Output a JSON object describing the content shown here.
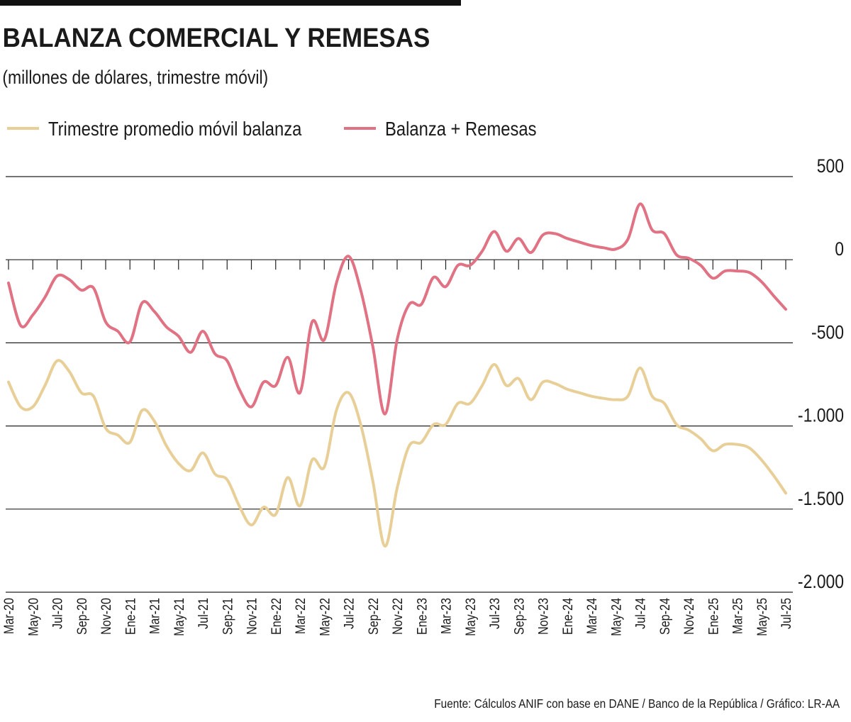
{
  "chart_data": {
    "type": "line",
    "title": "BALANZA COMERCIAL Y REMESAS",
    "subtitle": "(millones de dólares, trimestre móvil)",
    "source": "Fuente: Cálculos ANIF con base en DANE / Banco de la República / Gráfico: LR-AA",
    "categories": [
      "Mar-20",
      null,
      "May-20",
      null,
      "Jul-20",
      null,
      "Sep-20",
      null,
      "Nov-20",
      null,
      "Ene-21",
      null,
      "Mar-21",
      null,
      "May-21",
      null,
      "Jul-21",
      null,
      "Sep-21",
      null,
      "Nov-21",
      null,
      "Ene-22",
      null,
      "Mar-22",
      null,
      "May-22",
      null,
      "Jul-22",
      null,
      "Sep-22",
      null,
      "Nov-22",
      null,
      "Ene-23",
      null,
      "Mar-23",
      null,
      "May-23",
      null,
      "Jul-23",
      null,
      "Sep-23",
      null,
      "Nov-23",
      null,
      "Ene-24",
      null,
      "Mar-24",
      null,
      "May-24",
      null,
      "Jul-24",
      null,
      "Sep-24",
      null,
      "Nov-24",
      null,
      "Ene-25",
      null,
      "Mar-25",
      null,
      "May-25",
      null,
      "Jul-25"
    ],
    "series": [
      {
        "name": "Trimestre promedio móvil balanza",
        "color": "#e8cf98",
        "values": [
          -736,
          -885,
          -885,
          -757,
          -608,
          -672,
          -800,
          -821,
          -1013,
          -1055,
          -1098,
          -906,
          -970,
          -1119,
          -1225,
          -1268,
          -1162,
          -1289,
          -1323,
          -1481,
          -1596,
          -1489,
          -1532,
          -1310,
          -1481,
          -1204,
          -1247,
          -906,
          -800,
          -991,
          -1332,
          -1723,
          -1374,
          -1119,
          -1098,
          -991,
          -991,
          -864,
          -864,
          -757,
          -630,
          -757,
          -715,
          -842,
          -736,
          -745,
          -779,
          -800,
          -821,
          -834,
          -842,
          -821,
          -651,
          -821,
          -864,
          -991,
          -1025,
          -1077,
          -1149,
          -1111,
          -1111,
          -1132,
          -1204,
          -1298,
          -1404
        ]
      },
      {
        "name": "Balanza + Remesas",
        "color": "#e07283",
        "values": [
          -140,
          -396,
          -332,
          -226,
          -98,
          -119,
          -183,
          -170,
          -374,
          -430,
          -494,
          -260,
          -311,
          -404,
          -460,
          -557,
          -430,
          -566,
          -608,
          -779,
          -885,
          -736,
          -757,
          -587,
          -800,
          -374,
          -481,
          -140,
          21,
          -183,
          -523,
          -928,
          -481,
          -268,
          -268,
          -106,
          -162,
          -34,
          -34,
          51,
          170,
          51,
          128,
          43,
          149,
          157,
          128,
          106,
          85,
          72,
          64,
          123,
          336,
          179,
          157,
          30,
          9,
          -34,
          -111,
          -68,
          -68,
          -77,
          -132,
          -217,
          -298
        ]
      }
    ],
    "ylim": [
      -2000,
      500
    ],
    "yticks": [
      500,
      0,
      -500,
      {
        "value": -1000,
        "label": "-1.000"
      },
      {
        "value": -1500,
        "label": "-1.500"
      },
      {
        "value": -2000,
        "label": "-2.000"
      }
    ],
    "grid": true
  }
}
